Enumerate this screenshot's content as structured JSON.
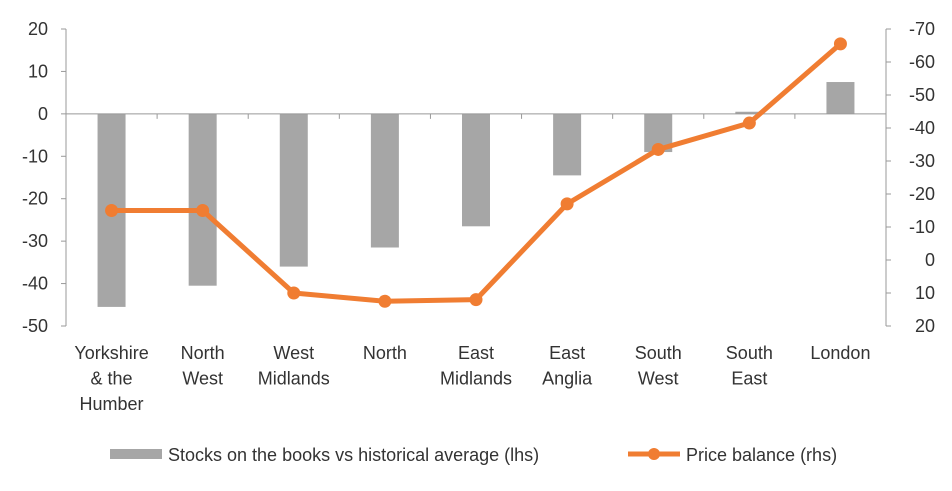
{
  "chart_data": {
    "type": "bar+line",
    "categories": [
      [
        "Yorkshire",
        "& the",
        "Humber"
      ],
      [
        "North",
        "West"
      ],
      [
        "West",
        "Midlands"
      ],
      [
        "North"
      ],
      [
        "East",
        "Midlands"
      ],
      [
        "East",
        "Anglia"
      ],
      [
        "South",
        "West"
      ],
      [
        "South",
        "East"
      ],
      [
        "London"
      ]
    ],
    "series": [
      {
        "name": "Stocks on the books vs historical average (lhs)",
        "type": "bar",
        "axis": "left",
        "color": "#a6a6a6",
        "values": [
          -45.5,
          -40.5,
          -36,
          -31.5,
          -26.5,
          -14.5,
          -9,
          0.5,
          7.5
        ]
      },
      {
        "name": "Price balance (rhs)",
        "type": "line",
        "axis": "right",
        "color": "#f07d32",
        "values": [
          -15,
          -15,
          10,
          12.5,
          12,
          -17,
          -33.5,
          -41.5,
          -65.5
        ]
      }
    ],
    "left_axis": {
      "min": -50,
      "max": 20,
      "ticks": [
        "20",
        "10",
        "0",
        "-10",
        "-20",
        "-30",
        "-40",
        "-50"
      ]
    },
    "right_axis": {
      "min": 20,
      "max": -70,
      "inverted": true,
      "ticks": [
        "-70",
        "-60",
        "-50",
        "-40",
        "-30",
        "-20",
        "-10",
        "0",
        "10",
        "20"
      ]
    },
    "legend_position": "bottom",
    "grid": false
  }
}
